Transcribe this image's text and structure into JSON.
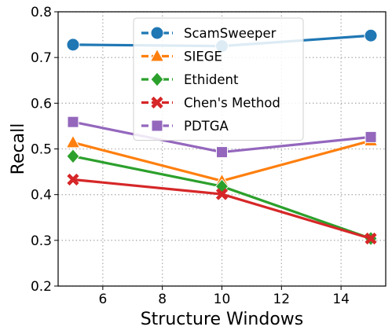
{
  "chart_data": {
    "type": "line",
    "title": "",
    "xlabel": "Structure Windows",
    "ylabel": "Recall",
    "x": [
      5,
      10,
      15
    ],
    "xlim": [
      4.5,
      15.5
    ],
    "ylim": [
      0.2,
      0.8
    ],
    "xticks": [
      6,
      8,
      10,
      12,
      14
    ],
    "xtick_labels": [
      "6",
      "8",
      "10",
      "12",
      "14"
    ],
    "yticks": [
      0.2,
      0.3,
      0.4,
      0.5,
      0.6,
      0.7,
      0.8
    ],
    "ytick_labels": [
      "0.2",
      "0.3",
      "0.4",
      "0.5",
      "0.6",
      "0.7",
      "0.8"
    ],
    "grid": true,
    "legend_position": "top-center",
    "series": [
      {
        "name": "ScamSweeper",
        "values": [
          0.728,
          0.725,
          0.748
        ],
        "color": "#1f77b4",
        "marker": "circle"
      },
      {
        "name": "SIEGE",
        "values": [
          0.514,
          0.43,
          0.518
        ],
        "color": "#ff7f0e",
        "marker": "triangle"
      },
      {
        "name": "Ethident",
        "values": [
          0.484,
          0.418,
          0.304
        ],
        "color": "#2ca02c",
        "marker": "diamond"
      },
      {
        "name": "Chen's Method",
        "values": [
          0.433,
          0.401,
          0.304
        ],
        "color": "#d62728",
        "marker": "x"
      },
      {
        "name": "PDTGA",
        "values": [
          0.559,
          0.493,
          0.526
        ],
        "color": "#9467bd",
        "marker": "square"
      }
    ]
  }
}
